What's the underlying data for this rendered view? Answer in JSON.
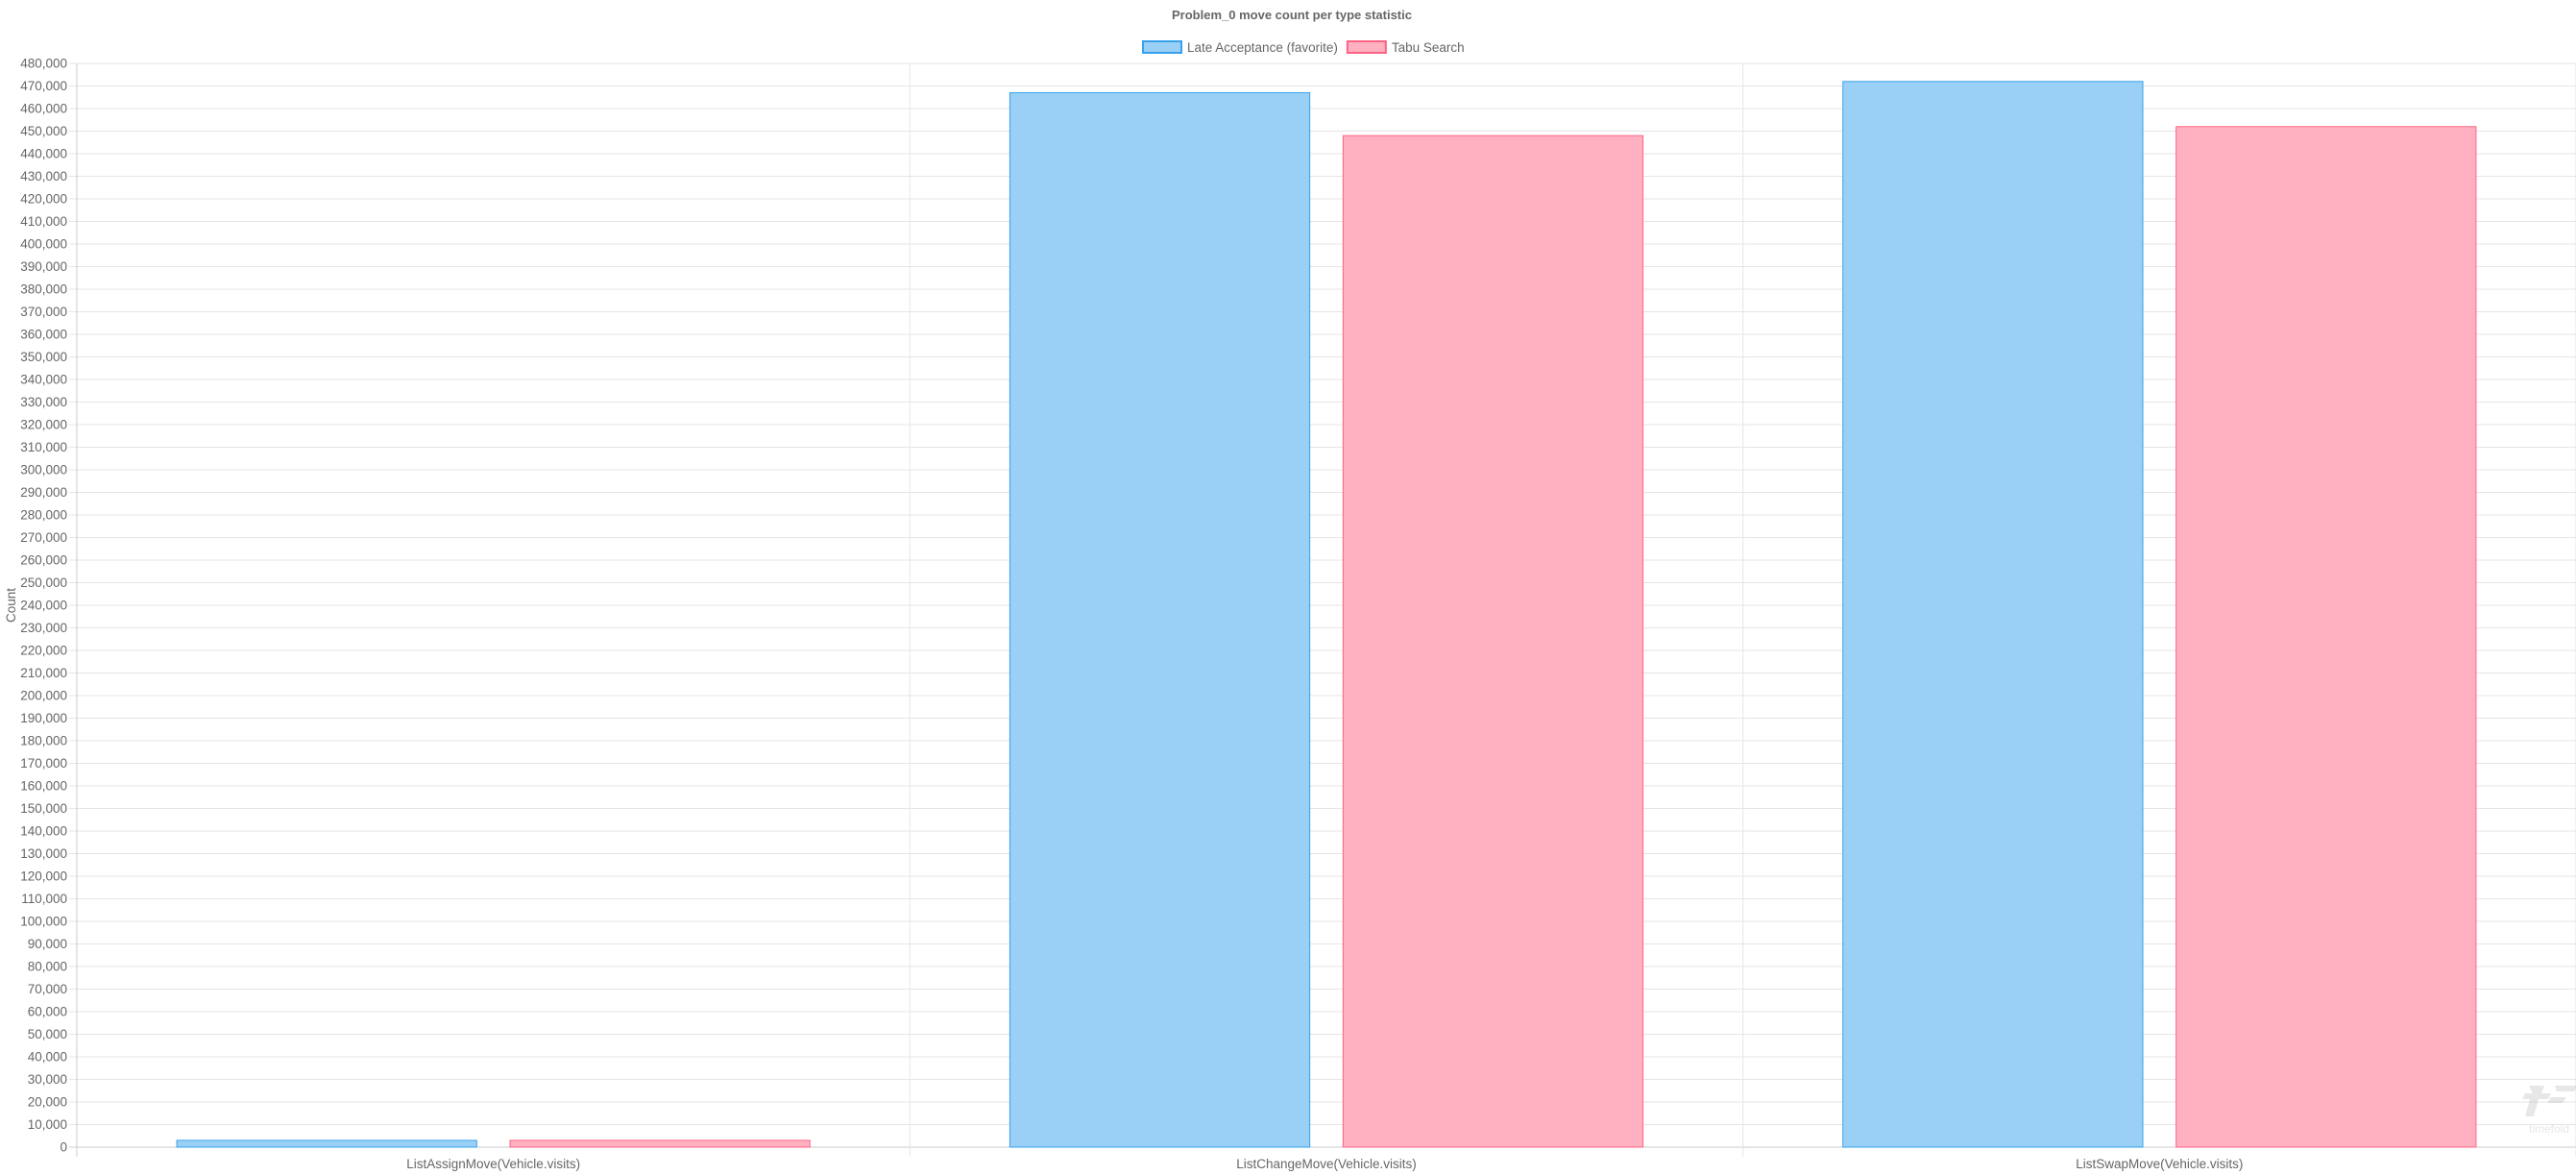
{
  "chart_data": {
    "type": "bar",
    "title": "Problem_0 move count per type statistic",
    "xlabel": "",
    "ylabel": "Count",
    "categories": [
      "ListAssignMove(Vehicle.visits)",
      "ListChangeMove(Vehicle.visits)",
      "ListSwapMove(Vehicle.visits)"
    ],
    "series": [
      {
        "name": "Late Acceptance (favorite)",
        "values": [
          3000,
          467000,
          472000
        ],
        "color": "#36a2eb",
        "fill": "#9ad0f5"
      },
      {
        "name": "Tabu Search",
        "values": [
          3000,
          448000,
          452000
        ],
        "color": "#ff6384",
        "fill": "#ffb1c1"
      }
    ],
    "ylim": [
      0,
      480000
    ],
    "ytick_step": 10000,
    "grid": true,
    "legend": "top-center"
  },
  "watermark": "timefold"
}
